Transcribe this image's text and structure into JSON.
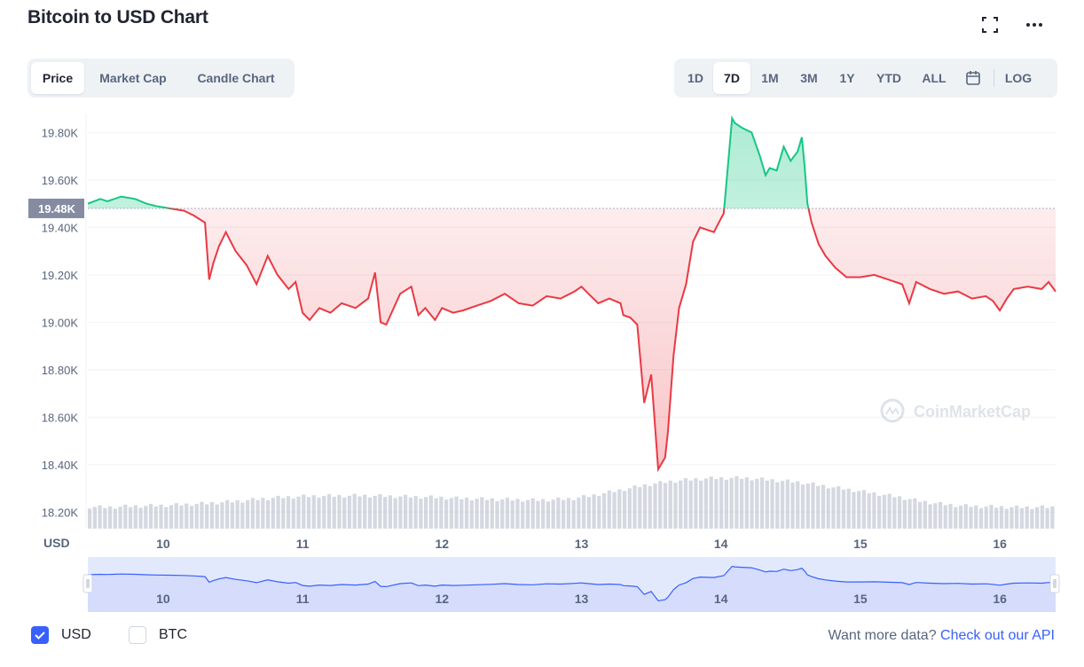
{
  "header": {
    "title": "Bitcoin to USD Chart",
    "fullscreen_icon": "fullscreen-icon",
    "more_icon": "more-dots-icon"
  },
  "chart_type_tabs": [
    {
      "label": "Price",
      "active": true
    },
    {
      "label": "Market Cap",
      "active": false
    },
    {
      "label": "Candle Chart",
      "active": false
    }
  ],
  "range_tabs": [
    {
      "label": "1D",
      "active": false
    },
    {
      "label": "7D",
      "active": true
    },
    {
      "label": "1M",
      "active": false
    },
    {
      "label": "3M",
      "active": false
    },
    {
      "label": "1Y",
      "active": false
    },
    {
      "label": "YTD",
      "active": false
    },
    {
      "label": "ALL",
      "active": false
    }
  ],
  "calendar_icon": "calendar-icon",
  "log_label": "LOG",
  "colors": {
    "up": "#16c784",
    "down": "#ea3943",
    "grid": "#eff2f5",
    "axis_text": "#58667e",
    "accent": "#3861fb",
    "baseline_tag": "#858ca2",
    "volume": "#c3c8d3"
  },
  "chart_data": {
    "type": "line",
    "currency_label": "USD",
    "baseline": 19480,
    "baseline_label": "19.48K",
    "ylim": [
      18130,
      19880
    ],
    "y_ticks": [
      {
        "value": 19800,
        "label": "19.80K"
      },
      {
        "value": 19600,
        "label": "19.60K"
      },
      {
        "value": 19400,
        "label": "19.40K"
      },
      {
        "value": 19200,
        "label": "19.20K"
      },
      {
        "value": 19000,
        "label": "19.00K"
      },
      {
        "value": 18800,
        "label": "18.80K"
      },
      {
        "value": 18600,
        "label": "18.60K"
      },
      {
        "value": 18400,
        "label": "18.40K"
      },
      {
        "value": 18200,
        "label": "18.20K"
      }
    ],
    "xlim": [
      9.46,
      16.4
    ],
    "x_ticks": [
      {
        "value": 10,
        "label": "10"
      },
      {
        "value": 11,
        "label": "11"
      },
      {
        "value": 12,
        "label": "12"
      },
      {
        "value": 13,
        "label": "13"
      },
      {
        "value": 14,
        "label": "14"
      },
      {
        "value": 15,
        "label": "15"
      },
      {
        "value": 16,
        "label": "16"
      }
    ],
    "series": [
      {
        "x": [
          9.46,
          9.55,
          9.6,
          9.7,
          9.8,
          9.88,
          9.95,
          10.05,
          10.15,
          10.22,
          10.3,
          10.33,
          10.36,
          10.4,
          10.45,
          10.52,
          10.6,
          10.67,
          10.75,
          10.82,
          10.9,
          10.95,
          11.0,
          11.05,
          11.12,
          11.2,
          11.28,
          11.38,
          11.47,
          11.52,
          11.56,
          11.6,
          11.7,
          11.78,
          11.83,
          11.88,
          11.95,
          12.0,
          12.08,
          12.15,
          12.25,
          12.35,
          12.45,
          12.55,
          12.65,
          12.75,
          12.85,
          12.95,
          13.0,
          13.05,
          13.12,
          13.2,
          13.28,
          13.3,
          13.35,
          13.4,
          13.45,
          13.5,
          13.52,
          13.55,
          13.6,
          13.62,
          13.66,
          13.7,
          13.75,
          13.8,
          13.85,
          13.95,
          14.02,
          14.08,
          14.1,
          14.15,
          14.22,
          14.28,
          14.32,
          14.35,
          14.4,
          14.45,
          14.5,
          14.55,
          14.58,
          14.6,
          14.62,
          14.65,
          14.7,
          14.75,
          14.82,
          14.9,
          15.0,
          15.1,
          15.2,
          15.3,
          15.35,
          15.4,
          15.5,
          15.6,
          15.7,
          15.8,
          15.9,
          15.95,
          16.0,
          16.05,
          16.1,
          16.2,
          16.3,
          16.35,
          16.4
        ],
        "y": [
          19500,
          19520,
          19510,
          19530,
          19520,
          19500,
          19490,
          19480,
          19470,
          19450,
          19420,
          19180,
          19250,
          19320,
          19380,
          19300,
          19240,
          19160,
          19280,
          19200,
          19140,
          19170,
          19040,
          19010,
          19060,
          19040,
          19080,
          19060,
          19100,
          19210,
          19000,
          18990,
          19120,
          19150,
          19030,
          19060,
          19010,
          19060,
          19040,
          19050,
          19070,
          19090,
          19120,
          19080,
          19070,
          19110,
          19100,
          19130,
          19150,
          19120,
          19080,
          19100,
          19080,
          19030,
          19020,
          18990,
          18660,
          18780,
          18620,
          18380,
          18430,
          18540,
          18860,
          19060,
          19160,
          19340,
          19400,
          19380,
          19460,
          19860,
          19840,
          19820,
          19800,
          19700,
          19620,
          19650,
          19640,
          19740,
          19680,
          19720,
          19780,
          19660,
          19500,
          19420,
          19330,
          19280,
          19230,
          19190,
          19190,
          19200,
          19180,
          19160,
          19080,
          19170,
          19140,
          19120,
          19130,
          19100,
          19110,
          19090,
          19050,
          19100,
          19140,
          19150,
          19140,
          19170,
          19130
        ]
      }
    ],
    "volume": [
      0.35,
      0.34,
      0.36,
      0.37,
      0.38,
      0.4,
      0.42,
      0.45,
      0.48,
      0.52,
      0.55,
      0.57,
      0.58,
      0.58,
      0.59,
      0.58,
      0.57,
      0.56,
      0.55,
      0.53,
      0.52,
      0.51,
      0.5,
      0.49,
      0.5,
      0.52,
      0.58,
      0.66,
      0.74,
      0.82,
      0.88,
      0.92,
      0.95,
      0.96,
      0.96,
      0.93,
      0.9,
      0.86,
      0.8,
      0.74,
      0.68,
      0.62,
      0.56,
      0.48,
      0.42,
      0.38,
      0.36,
      0.35,
      0.34,
      0.34,
      0.34
    ]
  },
  "navigator": {
    "x_ticks": [
      "10",
      "11",
      "12",
      "13",
      "14",
      "15",
      "16"
    ]
  },
  "watermark": "CoinMarketCap",
  "footer": {
    "options": [
      {
        "label": "USD",
        "checked": true
      },
      {
        "label": "BTC",
        "checked": false
      }
    ],
    "api_prefix": "Want more data? ",
    "api_link": "Check out our API"
  }
}
